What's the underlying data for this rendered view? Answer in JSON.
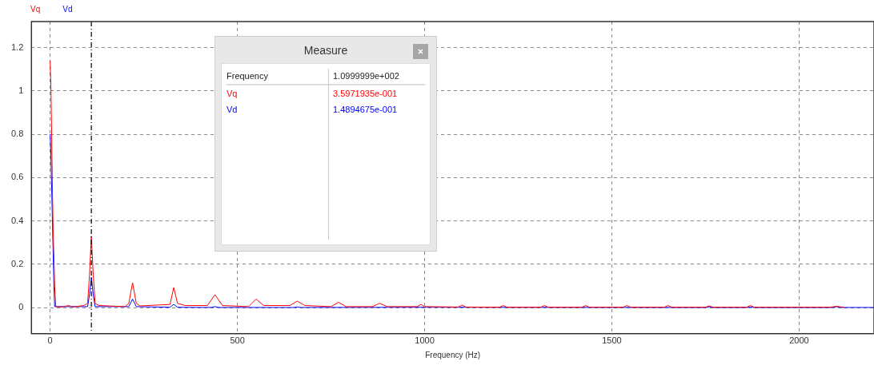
{
  "chart_data": {
    "type": "line",
    "xlabel": "Frequency (Hz)",
    "legend": "top left",
    "grid": true,
    "marker": "none",
    "line_style": "solid",
    "xlim": [
      -50,
      2200
    ],
    "xticks": [
      0,
      500,
      1000,
      1500,
      2000
    ],
    "ylim": [
      -0.12,
      1.32
    ],
    "yticks": [
      0,
      0.2,
      0.4,
      0.6,
      0.8,
      1,
      1.2
    ],
    "ref_lines": [
      {
        "axis": "x",
        "value": 110,
        "color": "#000000",
        "line_style": "dashed"
      }
    ],
    "annotations": [
      "Measure",
      "Frequency",
      "1.0999999e+002",
      "Vq",
      "3.5971935e-001",
      "Vd",
      "1.4894675e-001"
    ],
    "series": [
      {
        "name": "Vq",
        "color": "#ff0000",
        "x": [
          0,
          2,
          4,
          6,
          8,
          10,
          12,
          15,
          30,
          50,
          60,
          90,
          100,
          105,
          110,
          115,
          120,
          130,
          200,
          210,
          220,
          230,
          240,
          320,
          330,
          340,
          360,
          420,
          440,
          460,
          530,
          550,
          570,
          640,
          660,
          680,
          750,
          770,
          790,
          860,
          880,
          900,
          980,
          990,
          1000,
          1090,
          1100,
          1110,
          1200,
          1210,
          1220,
          1310,
          1320,
          1330,
          1420,
          1430,
          1440,
          1530,
          1540,
          1550,
          1640,
          1650,
          1660,
          1750,
          1760,
          1770,
          1860,
          1870,
          1880,
          2080,
          2100,
          2120
        ],
        "values": [
          1.14,
          1.02,
          0.8,
          0.55,
          0.35,
          0.24,
          0.1,
          0.005,
          0.003,
          0.01,
          0.003,
          0.01,
          0.02,
          0.15,
          0.33,
          0.15,
          0.02,
          0.01,
          0.005,
          0.02,
          0.115,
          0.02,
          0.008,
          0.015,
          0.093,
          0.02,
          0.01,
          0.01,
          0.06,
          0.01,
          0.005,
          0.04,
          0.01,
          0.01,
          0.03,
          0.01,
          0.005,
          0.025,
          0.005,
          0.005,
          0.02,
          0.005,
          0.005,
          0.015,
          0.005,
          0.003,
          0.012,
          0.003,
          0.002,
          0.01,
          0.002,
          0.002,
          0.01,
          0.002,
          0.002,
          0.01,
          0.002,
          0.002,
          0.01,
          0.002,
          0.002,
          0.01,
          0.002,
          0.002,
          0.008,
          0.002,
          0.002,
          0.01,
          0.002,
          0.002,
          0.006,
          0.002
        ]
      },
      {
        "name": "Vd",
        "color": "#0000ff",
        "x": [
          0,
          2,
          4,
          6,
          8,
          10,
          12,
          100,
          105,
          110,
          115,
          120,
          210,
          220,
          230,
          320,
          330,
          340,
          430,
          440,
          450,
          650,
          660,
          670,
          1000,
          1750,
          1760,
          1770,
          1860,
          1870,
          1880,
          2090,
          2100,
          2110,
          2200
        ],
        "values": [
          0.8,
          0.7,
          0.55,
          0.4,
          0.25,
          0.1,
          0.005,
          0.005,
          0.06,
          0.14,
          0.06,
          0.005,
          0.005,
          0.04,
          0.005,
          0.002,
          0.015,
          0.002,
          0.001,
          0.005,
          0.001,
          0.001,
          0.003,
          0.001,
          0.002,
          0.001,
          0.004,
          0.001,
          0.001,
          0.003,
          0.001,
          0.001,
          0.005,
          0.001,
          0.001
        ]
      }
    ]
  }
}
